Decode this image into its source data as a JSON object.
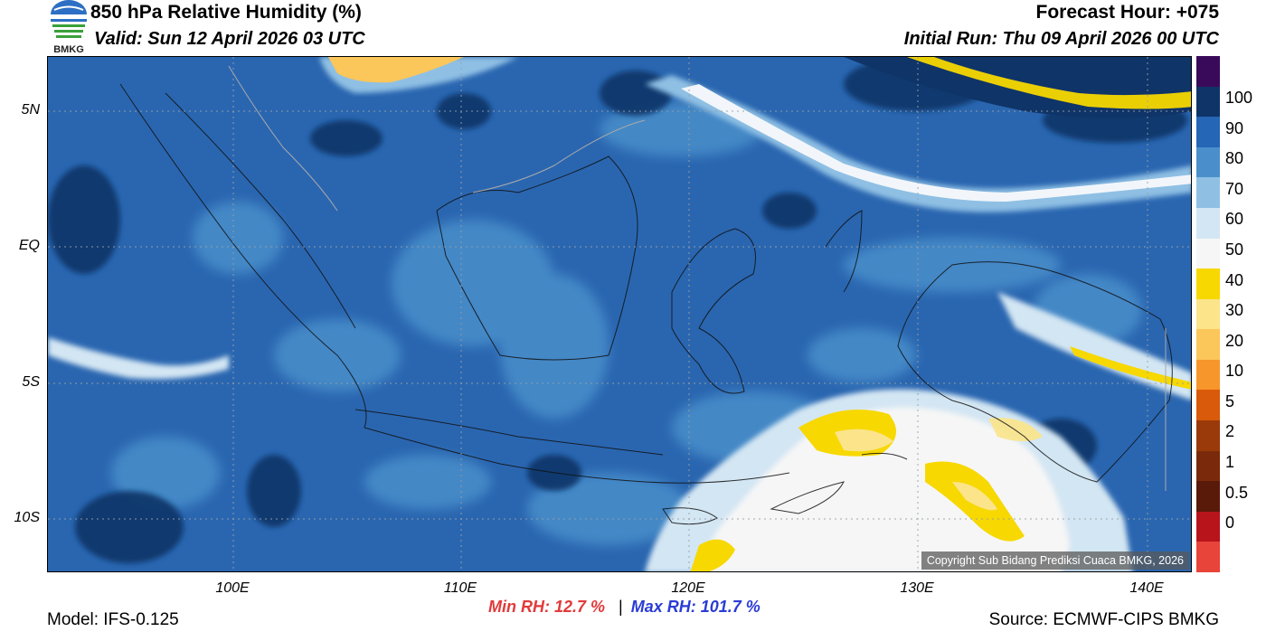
{
  "header": {
    "title": "850 hPa Relative Humidity (%)",
    "valid": "Valid: Sun 12 April 2026 03 UTC",
    "forecast_hour": "Forecast Hour: +075",
    "initial_run": "Initial Run: Thu 09 April 2026 00 UTC",
    "logo_text": "BMKG"
  },
  "map": {
    "lat_labels": [
      "5N",
      "EQ",
      "5S",
      "10S"
    ],
    "lon_labels": [
      "100E",
      "110E",
      "120E",
      "130E",
      "140E"
    ],
    "copyright": "Copyright Sub Bidang Prediksi Cuaca BMKG, 2026"
  },
  "colorbar": {
    "labels": [
      "100",
      "90",
      "80",
      "70",
      "60",
      "50",
      "40",
      "30",
      "20",
      "10",
      "5",
      "2",
      "1",
      "0.5",
      "0"
    ],
    "colors": [
      "#3a0a5a",
      "#0f3468",
      "#2566b6",
      "#4a8fcb",
      "#8fc0e4",
      "#d3e6f3",
      "#f6f6f6",
      "#f7d800",
      "#fbe48a",
      "#fbc65a",
      "#f7962a",
      "#d95a0a",
      "#9a3a0a",
      "#7a2a0a",
      "#5a1a0a",
      "#b8141c",
      "#e8443a"
    ]
  },
  "stats": {
    "min_label": "Min RH:  12.7 %",
    "separator": "|",
    "max_label": "Max RH: 101.7 %",
    "min_color": "#e23a3a",
    "max_color": "#2b3cd6"
  },
  "footer": {
    "model": "Model: IFS-0.125",
    "source": "Source: ECMWF-CIPS BMKG"
  }
}
